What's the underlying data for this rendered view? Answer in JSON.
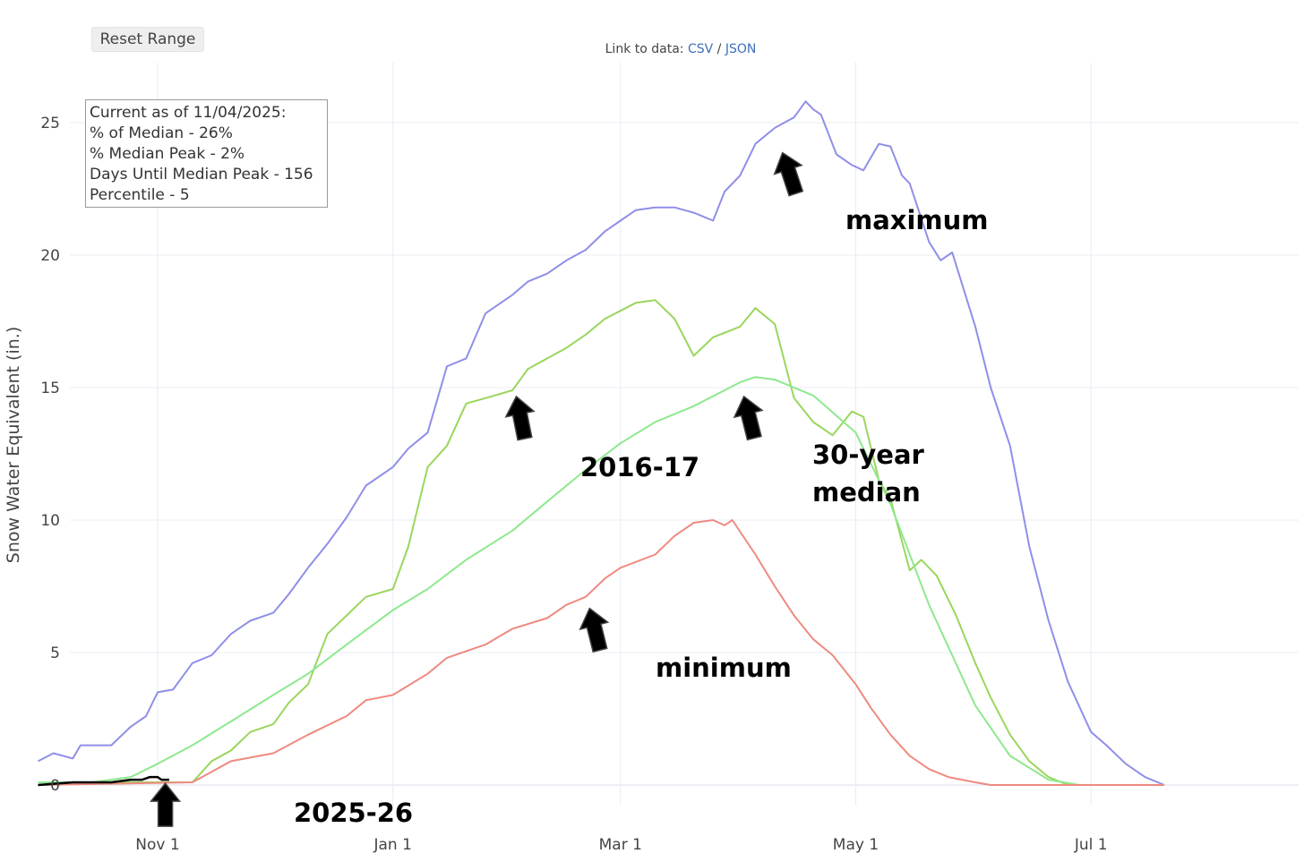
{
  "toolbar": {
    "reset_label": "Reset Range"
  },
  "links": {
    "prefix": "Link to data:",
    "csv": "CSV",
    "sep": "/",
    "json": "JSON"
  },
  "info_box": {
    "line1": "Current as of 11/04/2025:",
    "line2": "% of Median - 26%",
    "line3": "% Median Peak - 2%",
    "line4": "Days Until Median Peak - 156",
    "line5": "Percentile - 5"
  },
  "colors": {
    "maximum": "#8f8fe8",
    "wy2017": "#9ad65e",
    "median": "#8ee88e",
    "minimum": "#ee8a80",
    "current": "#000000",
    "background": "#ffffff",
    "grid": "#e8ecf5"
  },
  "chart_data": {
    "type": "line",
    "title": "",
    "xlabel": "",
    "ylabel": "Snow Water Equivalent (in.)",
    "x_ticks": [
      "Nov 1",
      "Jan 1",
      "Mar 1",
      "May 1",
      "Jul 1"
    ],
    "ylim": [
      0,
      27
    ],
    "y_ticks": [
      0,
      5,
      10,
      15,
      20,
      25
    ],
    "grid": true,
    "annotations": [
      "maximum",
      "2016-17",
      "30-year median",
      "minimum",
      "2025-26"
    ],
    "series": [
      {
        "key": "maximum",
        "points": [
          [
            "Oct 1",
            0.9
          ],
          [
            "Oct 5",
            1.2
          ],
          [
            "Oct 10",
            1.0
          ],
          [
            "Oct 12",
            1.5
          ],
          [
            "Oct 20",
            1.5
          ],
          [
            "Oct 25",
            2.2
          ],
          [
            "Oct 29",
            2.6
          ],
          [
            "Nov 1",
            3.5
          ],
          [
            "Nov 5",
            3.6
          ],
          [
            "Nov 10",
            4.6
          ],
          [
            "Nov 15",
            4.9
          ],
          [
            "Nov 20",
            5.7
          ],
          [
            "Nov 25",
            6.2
          ],
          [
            "Dec 1",
            6.5
          ],
          [
            "Dec 5",
            7.2
          ],
          [
            "Dec 10",
            8.2
          ],
          [
            "Dec 15",
            9.1
          ],
          [
            "Dec 20",
            10.1
          ],
          [
            "Dec 25",
            11.3
          ],
          [
            "Jan 1",
            12.0
          ],
          [
            "Jan 5",
            12.7
          ],
          [
            "Jan 10",
            13.3
          ],
          [
            "Jan 15",
            15.8
          ],
          [
            "Jan 20",
            16.1
          ],
          [
            "Jan 25",
            17.8
          ],
          [
            "Feb 1",
            18.5
          ],
          [
            "Feb 5",
            19.0
          ],
          [
            "Feb 10",
            19.3
          ],
          [
            "Feb 15",
            19.8
          ],
          [
            "Feb 20",
            20.2
          ],
          [
            "Feb 25",
            20.9
          ],
          [
            "Mar 1",
            21.3
          ],
          [
            "Mar 5",
            21.7
          ],
          [
            "Mar 10",
            21.8
          ],
          [
            "Mar 15",
            21.8
          ],
          [
            "Mar 20",
            21.6
          ],
          [
            "Mar 25",
            21.3
          ],
          [
            "Mar 28",
            22.4
          ],
          [
            "Apr 1",
            23.0
          ],
          [
            "Apr 5",
            24.2
          ],
          [
            "Apr 10",
            24.8
          ],
          [
            "Apr 15",
            25.2
          ],
          [
            "Apr 18",
            25.8
          ],
          [
            "Apr 20",
            25.5
          ],
          [
            "Apr 22",
            25.3
          ],
          [
            "Apr 26",
            23.8
          ],
          [
            "Apr 30",
            23.4
          ],
          [
            "May 3",
            23.2
          ],
          [
            "May 7",
            24.2
          ],
          [
            "May 10",
            24.1
          ],
          [
            "May 13",
            23.0
          ],
          [
            "May 15",
            22.7
          ],
          [
            "May 20",
            20.5
          ],
          [
            "May 23",
            19.8
          ],
          [
            "May 26",
            20.1
          ],
          [
            "Jun 1",
            17.3
          ],
          [
            "Jun 5",
            15.0
          ],
          [
            "Jun 10",
            12.8
          ],
          [
            "Jun 15",
            9.0
          ],
          [
            "Jun 20",
            6.2
          ],
          [
            "Jun 25",
            3.9
          ],
          [
            "Jul 1",
            2.0
          ],
          [
            "Jul 5",
            1.5
          ],
          [
            "Jul 10",
            0.8
          ],
          [
            "Jul 15",
            0.3
          ],
          [
            "Jul 20",
            0.0
          ]
        ]
      },
      {
        "key": "wy2017",
        "points": [
          [
            "Oct 1",
            0.0
          ],
          [
            "Oct 20",
            0.1
          ],
          [
            "Nov 1",
            0.1
          ],
          [
            "Nov 10",
            0.1
          ],
          [
            "Nov 15",
            0.9
          ],
          [
            "Nov 20",
            1.3
          ],
          [
            "Nov 25",
            2.0
          ],
          [
            "Dec 1",
            2.3
          ],
          [
            "Dec 5",
            3.1
          ],
          [
            "Dec 10",
            3.8
          ],
          [
            "Dec 15",
            5.7
          ],
          [
            "Dec 20",
            6.4
          ],
          [
            "Dec 25",
            7.1
          ],
          [
            "Jan 1",
            7.4
          ],
          [
            "Jan 5",
            9.0
          ],
          [
            "Jan 10",
            12.0
          ],
          [
            "Jan 15",
            12.8
          ],
          [
            "Jan 20",
            14.4
          ],
          [
            "Jan 25",
            14.6
          ],
          [
            "Feb 1",
            14.9
          ],
          [
            "Feb 5",
            15.7
          ],
          [
            "Feb 10",
            16.1
          ],
          [
            "Feb 15",
            16.5
          ],
          [
            "Feb 20",
            17.0
          ],
          [
            "Feb 25",
            17.6
          ],
          [
            "Mar 1",
            17.9
          ],
          [
            "Mar 5",
            18.2
          ],
          [
            "Mar 10",
            18.3
          ],
          [
            "Mar 15",
            17.6
          ],
          [
            "Mar 20",
            16.2
          ],
          [
            "Mar 25",
            16.9
          ],
          [
            "Apr 1",
            17.3
          ],
          [
            "Apr 5",
            18.0
          ],
          [
            "Apr 10",
            17.4
          ],
          [
            "Apr 15",
            14.6
          ],
          [
            "Apr 20",
            13.7
          ],
          [
            "Apr 25",
            13.2
          ],
          [
            "Apr 30",
            14.1
          ],
          [
            "May 3",
            13.9
          ],
          [
            "May 7",
            11.5
          ],
          [
            "May 10",
            10.8
          ],
          [
            "May 15",
            8.1
          ],
          [
            "May 18",
            8.5
          ],
          [
            "May 22",
            7.9
          ],
          [
            "May 27",
            6.4
          ],
          [
            "Jun 1",
            4.6
          ],
          [
            "Jun 5",
            3.3
          ],
          [
            "Jun 10",
            1.9
          ],
          [
            "Jun 15",
            0.9
          ],
          [
            "Jun 20",
            0.3
          ],
          [
            "Jun 25",
            0.0
          ],
          [
            "Jul 20",
            0.0
          ]
        ]
      },
      {
        "key": "median",
        "points": [
          [
            "Oct 1",
            0.1
          ],
          [
            "Oct 15",
            0.1
          ],
          [
            "Oct 25",
            0.3
          ],
          [
            "Nov 1",
            0.8
          ],
          [
            "Nov 10",
            1.5
          ],
          [
            "Nov 20",
            2.4
          ],
          [
            "Dec 1",
            3.4
          ],
          [
            "Dec 10",
            4.2
          ],
          [
            "Dec 20",
            5.3
          ],
          [
            "Jan 1",
            6.6
          ],
          [
            "Jan 10",
            7.4
          ],
          [
            "Jan 20",
            8.5
          ],
          [
            "Feb 1",
            9.6
          ],
          [
            "Feb 10",
            10.7
          ],
          [
            "Feb 20",
            11.9
          ],
          [
            "Mar 1",
            12.9
          ],
          [
            "Mar 10",
            13.7
          ],
          [
            "Mar 20",
            14.3
          ],
          [
            "Apr 1",
            15.2
          ],
          [
            "Apr 5",
            15.4
          ],
          [
            "Apr 10",
            15.3
          ],
          [
            "Apr 20",
            14.7
          ],
          [
            "May 1",
            13.3
          ],
          [
            "May 10",
            10.6
          ],
          [
            "May 20",
            6.8
          ],
          [
            "Jun 1",
            3.0
          ],
          [
            "Jun 10",
            1.1
          ],
          [
            "Jun 20",
            0.2
          ],
          [
            "Jun 28",
            0.0
          ],
          [
            "Jul 20",
            0.0
          ]
        ]
      },
      {
        "key": "minimum",
        "points": [
          [
            "Oct 1",
            0.0
          ],
          [
            "Nov 10",
            0.1
          ],
          [
            "Nov 15",
            0.5
          ],
          [
            "Nov 20",
            0.9
          ],
          [
            "Dec 1",
            1.2
          ],
          [
            "Dec 10",
            1.9
          ],
          [
            "Dec 20",
            2.6
          ],
          [
            "Dec 25",
            3.2
          ],
          [
            "Jan 1",
            3.4
          ],
          [
            "Jan 10",
            4.2
          ],
          [
            "Jan 15",
            4.8
          ],
          [
            "Jan 25",
            5.3
          ],
          [
            "Feb 1",
            5.9
          ],
          [
            "Feb 10",
            6.3
          ],
          [
            "Feb 15",
            6.8
          ],
          [
            "Feb 20",
            7.1
          ],
          [
            "Feb 25",
            7.8
          ],
          [
            "Mar 1",
            8.2
          ],
          [
            "Mar 10",
            8.7
          ],
          [
            "Mar 15",
            9.4
          ],
          [
            "Mar 20",
            9.9
          ],
          [
            "Mar 25",
            10.0
          ],
          [
            "Mar 28",
            9.8
          ],
          [
            "Mar 30",
            10.0
          ],
          [
            "Apr 5",
            8.7
          ],
          [
            "Apr 10",
            7.5
          ],
          [
            "Apr 15",
            6.4
          ],
          [
            "Apr 20",
            5.5
          ],
          [
            "Apr 25",
            4.9
          ],
          [
            "May 1",
            3.8
          ],
          [
            "May 5",
            2.9
          ],
          [
            "May 10",
            1.9
          ],
          [
            "May 15",
            1.1
          ],
          [
            "May 20",
            0.6
          ],
          [
            "May 25",
            0.3
          ],
          [
            "Jun 1",
            0.1
          ],
          [
            "Jun 5",
            0.0
          ],
          [
            "Jul 20",
            0.0
          ]
        ]
      },
      {
        "key": "current",
        "points": [
          [
            "Oct 1",
            0.0
          ],
          [
            "Oct 10",
            0.1
          ],
          [
            "Oct 15",
            0.1
          ],
          [
            "Oct 20",
            0.1
          ],
          [
            "Oct 25",
            0.2
          ],
          [
            "Oct 28",
            0.2
          ],
          [
            "Oct 30",
            0.3
          ],
          [
            "Nov 1",
            0.3
          ],
          [
            "Nov 2",
            0.2
          ],
          [
            "Nov 4",
            0.2
          ]
        ]
      }
    ]
  }
}
